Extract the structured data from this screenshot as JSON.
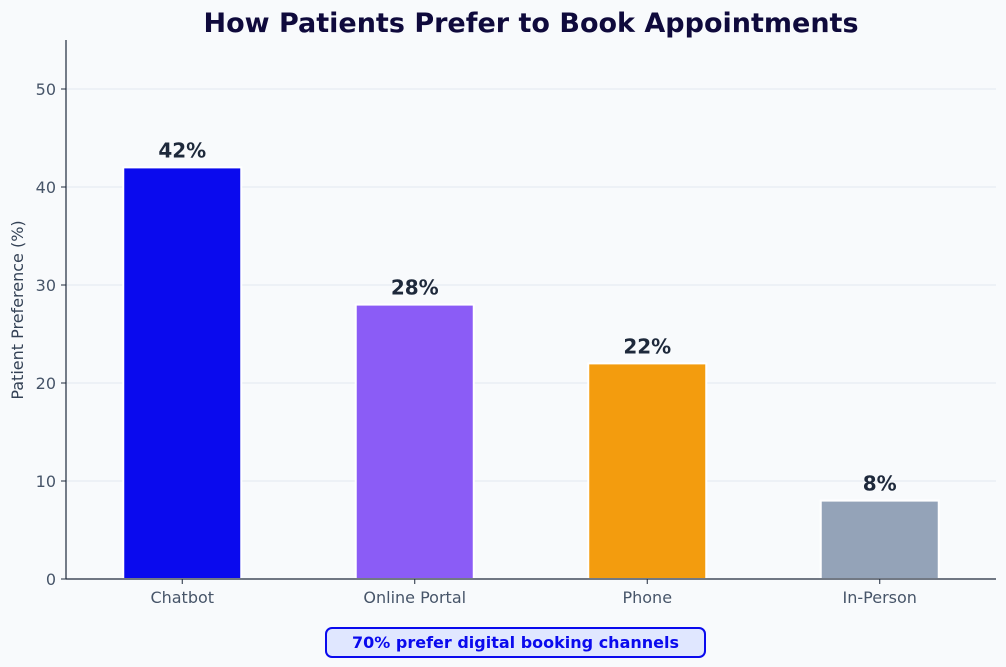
{
  "chart_data": {
    "type": "bar",
    "title": "How Patients Prefer to Book Appointments",
    "xlabel": "",
    "ylabel": "Patient Preference (%)",
    "categories": [
      "Chatbot",
      "Online Portal",
      "Phone",
      "In-Person"
    ],
    "values": [
      42,
      28,
      22,
      8
    ],
    "data_labels": [
      "42%",
      "28%",
      "22%",
      "8%"
    ],
    "bar_colors": [
      "#0a0aee",
      "#8b5cf6",
      "#f39c0e",
      "#94a3b8"
    ],
    "ylim": [
      0,
      55
    ],
    "yticks": [
      0,
      10,
      20,
      30,
      40,
      50
    ],
    "grid": "horizontal",
    "legend": "none"
  },
  "annotation": {
    "text": "70% prefer digital booking channels"
  },
  "colors": {
    "background": "#f8fafc",
    "title": "#0f0a3c",
    "data_label": "#1e293b",
    "tick_label": "#475569",
    "axis_label": "#334155",
    "grid": "#e2e8f0",
    "axis": "#1e293b",
    "annotation_border": "#0a0aee",
    "annotation_fill": "#e0e7ff"
  }
}
